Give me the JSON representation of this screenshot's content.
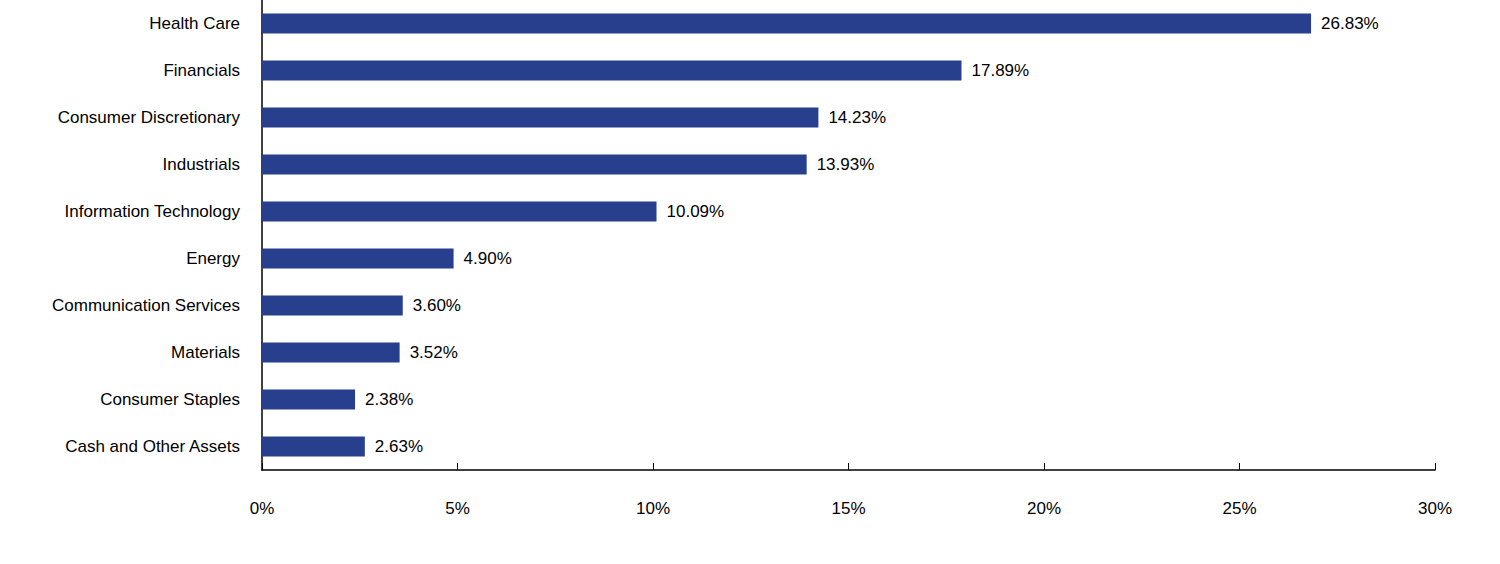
{
  "chart_data": {
    "type": "bar",
    "orientation": "horizontal",
    "categories": [
      "Health Care",
      "Financials",
      "Consumer Discretionary",
      "Industrials",
      "Information Technology",
      "Energy",
      "Communication Services",
      "Materials",
      "Consumer Staples",
      "Cash and Other Assets"
    ],
    "values": [
      26.83,
      17.89,
      14.23,
      13.93,
      10.09,
      4.9,
      3.6,
      3.52,
      2.38,
      2.63
    ],
    "value_labels": [
      "26.83%",
      "17.89%",
      "14.23%",
      "13.93%",
      "10.09%",
      "4.90%",
      "3.60%",
      "3.52%",
      "2.38%",
      "2.63%"
    ],
    "color": "#283f8e",
    "xlim": [
      0,
      30
    ],
    "xticks": [
      {
        "value": 0,
        "label": "0%"
      },
      {
        "value": 5,
        "label": "5%"
      },
      {
        "value": 10,
        "label": "10%"
      },
      {
        "value": 15,
        "label": "15%"
      },
      {
        "value": 20,
        "label": "20%"
      },
      {
        "value": 25,
        "label": "25%"
      },
      {
        "value": 30,
        "label": "30%"
      }
    ],
    "grid": false,
    "data_labels": true
  }
}
